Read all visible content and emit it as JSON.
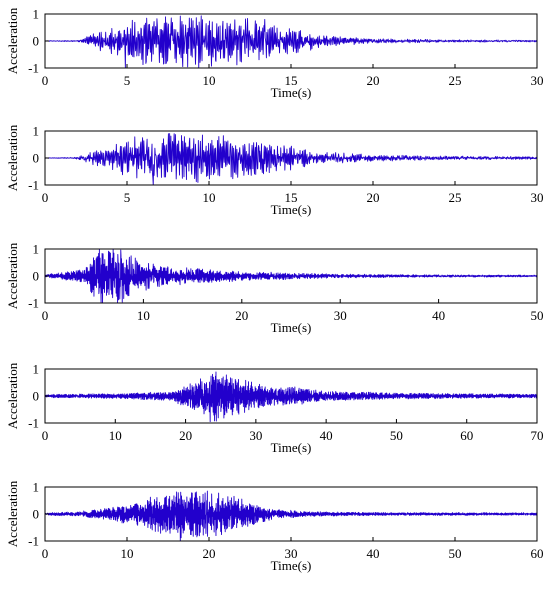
{
  "chart_data": [
    {
      "type": "line",
      "xlabel": "Time(s)",
      "ylabel": "Acceleration",
      "xlim": [
        0,
        30
      ],
      "ylim": [
        -1,
        1
      ],
      "xticks": [
        "0",
        "5",
        "10",
        "15",
        "20",
        "25",
        "30"
      ],
      "yticks": [
        "-1",
        "0",
        "1"
      ],
      "grid": false,
      "series": [
        {
          "color": "#2200cc",
          "duration": 30,
          "envelope": [
            [
              0,
              0.01
            ],
            [
              2,
              0.02
            ],
            [
              3,
              0.25
            ],
            [
              4.5,
              0.55
            ],
            [
              6,
              0.8
            ],
            [
              9,
              0.85
            ],
            [
              12,
              0.75
            ],
            [
              15,
              0.45
            ],
            [
              17,
              0.18
            ],
            [
              20,
              0.07
            ],
            [
              25,
              0.04
            ],
            [
              30,
              0.03
            ]
          ],
          "peaks": [
            {
              "t": 4.9,
              "v": -1.0
            },
            {
              "t": 8.8,
              "v": 0.85
            },
            {
              "t": 13.4,
              "v": 0.8
            }
          ]
        }
      ]
    },
    {
      "type": "line",
      "xlabel": "Time(s)",
      "ylabel": "Acceleration",
      "xlim": [
        0,
        30
      ],
      "ylim": [
        -1,
        1
      ],
      "xticks": [
        "0",
        "5",
        "10",
        "15",
        "20",
        "25",
        "30"
      ],
      "yticks": [
        "-1",
        "0",
        "1"
      ],
      "grid": false,
      "series": [
        {
          "color": "#2200cc",
          "duration": 30,
          "envelope": [
            [
              0,
              0.01
            ],
            [
              1.8,
              0.02
            ],
            [
              2.5,
              0.15
            ],
            [
              4,
              0.4
            ],
            [
              5.5,
              0.7
            ],
            [
              9,
              0.8
            ],
            [
              12,
              0.65
            ],
            [
              15,
              0.4
            ],
            [
              17,
              0.2
            ],
            [
              20,
              0.1
            ],
            [
              25,
              0.06
            ],
            [
              30,
              0.05
            ]
          ],
          "peaks": [
            {
              "t": 6.6,
              "v": -1.0
            },
            {
              "t": 9.6,
              "v": 0.85
            }
          ]
        }
      ]
    },
    {
      "type": "line",
      "xlabel": "Time(s)",
      "ylabel": "Acceleration",
      "xlim": [
        0,
        50
      ],
      "ylim": [
        -1,
        1
      ],
      "xticks": [
        "0",
        "10",
        "20",
        "30",
        "40",
        "50"
      ],
      "yticks": [
        "-1",
        "0",
        "1"
      ],
      "grid": false,
      "series": [
        {
          "color": "#2200cc",
          "duration": 50,
          "envelope": [
            [
              0,
              0.05
            ],
            [
              2,
              0.12
            ],
            [
              4,
              0.25
            ],
            [
              5.5,
              0.9
            ],
            [
              8,
              0.85
            ],
            [
              10,
              0.45
            ],
            [
              13,
              0.3
            ],
            [
              20,
              0.15
            ],
            [
              30,
              0.06
            ],
            [
              40,
              0.04
            ],
            [
              50,
              0.03
            ]
          ],
          "peaks": [
            {
              "t": 5.7,
              "v": -1.0
            },
            {
              "t": 5.9,
              "v": 0.82
            },
            {
              "t": 7.4,
              "v": 0.8
            },
            {
              "t": 7.6,
              "v": -0.85
            }
          ]
        }
      ]
    },
    {
      "type": "line",
      "xlabel": "Time(s)",
      "ylabel": "Acceleration",
      "xlim": [
        0,
        70
      ],
      "ylim": [
        -1,
        1
      ],
      "xticks": [
        "0",
        "10",
        "20",
        "30",
        "40",
        "50",
        "60",
        "70"
      ],
      "yticks": [
        "-1",
        "0",
        "1"
      ],
      "grid": false,
      "series": [
        {
          "color": "#2200cc",
          "duration": 70,
          "envelope": [
            [
              0,
              0.05
            ],
            [
              10,
              0.08
            ],
            [
              18,
              0.15
            ],
            [
              21,
              0.45
            ],
            [
              24,
              0.8
            ],
            [
              28,
              0.55
            ],
            [
              32,
              0.3
            ],
            [
              36,
              0.28
            ],
            [
              40,
              0.15
            ],
            [
              50,
              0.1
            ],
            [
              60,
              0.08
            ],
            [
              70,
              0.06
            ]
          ],
          "peaks": [
            {
              "t": 23.5,
              "v": -0.95
            },
            {
              "t": 25.8,
              "v": 0.78
            }
          ]
        }
      ]
    },
    {
      "type": "line",
      "xlabel": "Time(s)",
      "ylabel": "Acceleration",
      "xlim": [
        0,
        60
      ],
      "ylim": [
        -1,
        1
      ],
      "xticks": [
        "0",
        "10",
        "20",
        "30",
        "40",
        "50",
        "60"
      ],
      "yticks": [
        "-1",
        "0",
        "1"
      ],
      "grid": false,
      "series": [
        {
          "color": "#2200cc",
          "duration": 60,
          "envelope": [
            [
              0,
              0.04
            ],
            [
              4,
              0.07
            ],
            [
              8,
              0.2
            ],
            [
              12,
              0.45
            ],
            [
              15,
              0.75
            ],
            [
              19,
              0.8
            ],
            [
              22,
              0.65
            ],
            [
              25,
              0.4
            ],
            [
              28,
              0.15
            ],
            [
              32,
              0.08
            ],
            [
              40,
              0.05
            ],
            [
              60,
              0.04
            ]
          ],
          "peaks": [
            {
              "t": 16.5,
              "v": -1.0
            },
            {
              "t": 19.8,
              "v": 0.85
            }
          ]
        }
      ]
    }
  ]
}
